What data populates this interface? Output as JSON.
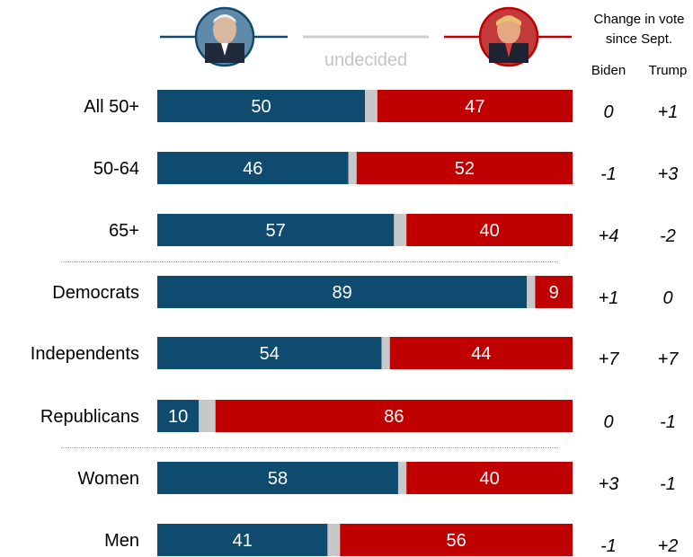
{
  "chart_data": {
    "type": "bar",
    "stacked": true,
    "orientation": "horizontal",
    "categories": [
      "All 50+",
      "50-64",
      "65+",
      "Democrats",
      "Independents",
      "Republicans",
      "Women",
      "Men"
    ],
    "series": [
      {
        "name": "Biden",
        "values": [
          50,
          46,
          57,
          89,
          54,
          10,
          58,
          41
        ]
      },
      {
        "name": "undecided",
        "values": [
          3,
          2,
          3,
          2,
          2,
          4,
          2,
          3
        ]
      },
      {
        "name": "Trump",
        "values": [
          47,
          52,
          40,
          9,
          44,
          86,
          40,
          56
        ]
      }
    ],
    "change_header": [
      "Change in vote",
      "since Sept."
    ],
    "change_columns": [
      "Biden",
      "Trump"
    ],
    "change_biden": [
      "0",
      "-1",
      "+4",
      "+1",
      "+7",
      "0",
      "+3",
      "-1"
    ],
    "change_trump": [
      "+1",
      "+3",
      "-2",
      "0",
      "+7",
      "-1",
      "-1",
      "+2"
    ],
    "group_dividers_after": [
      2,
      5
    ],
    "legend_undecided": "undecided",
    "colors": {
      "biden": "#0f4b6e",
      "trump": "#c00000",
      "undecided": "#c8c8c8",
      "legend_undecided": "#d0d0d0"
    },
    "xlim": [
      0,
      100
    ]
  }
}
